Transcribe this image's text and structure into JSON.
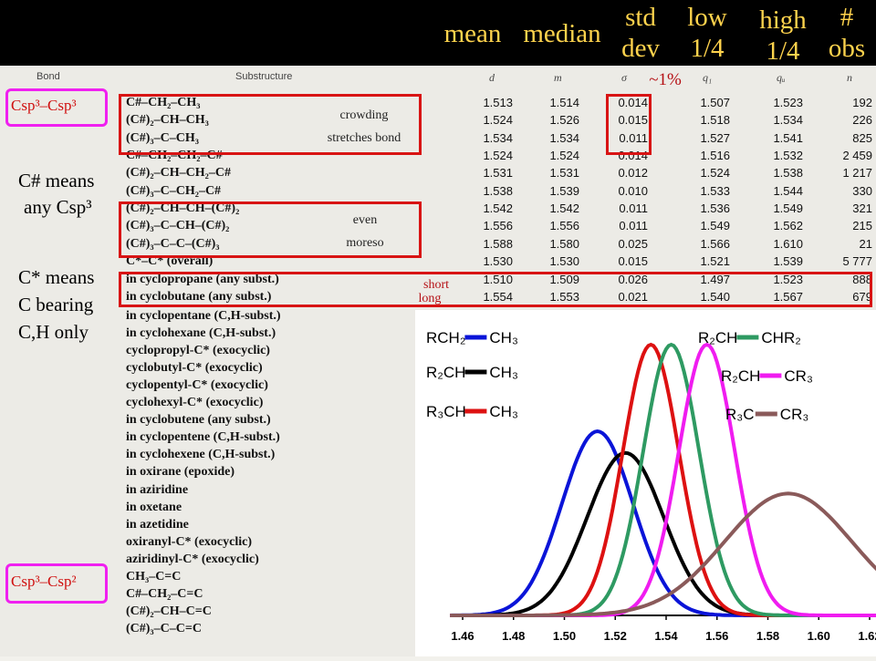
{
  "header": {
    "mean": "mean",
    "median": "median",
    "std_dev": [
      "std",
      "dev"
    ],
    "low": [
      "low",
      "1/4"
    ],
    "high": [
      "high",
      "1/4"
    ],
    "obs": [
      "#",
      "obs"
    ]
  },
  "columns": {
    "bond": "Bond",
    "substructure": "Substructure",
    "d": "d",
    "m": "m",
    "sigma": "σ",
    "q1": "q₁",
    "qu": "qᵤ",
    "n": "n"
  },
  "bond_types": {
    "first": "Csp³–Csp³",
    "second": "Csp³–Csp²"
  },
  "notes": {
    "approx": "~1%",
    "crowding": [
      "crowding",
      "stretches bond"
    ],
    "even": [
      "even",
      "moreso"
    ],
    "short": "short",
    "long": "long"
  },
  "side_notes": {
    "c_hash": [
      "C# means",
      "any Csp³"
    ],
    "c_star": [
      "C* means",
      "C bearing",
      "C,H only"
    ]
  },
  "rows": [
    {
      "sub": "C#–CH₂–CH₃",
      "d": "1.513",
      "m": "1.514",
      "s": "0.014",
      "q1": "1.507",
      "qu": "1.523",
      "n": "192"
    },
    {
      "sub": "(C#)₂–CH–CH₃",
      "d": "1.524",
      "m": "1.526",
      "s": "0.015",
      "q1": "1.518",
      "qu": "1.534",
      "n": "226"
    },
    {
      "sub": "(C#)₃–C–CH₃",
      "d": "1.534",
      "m": "1.534",
      "s": "0.011",
      "q1": "1.527",
      "qu": "1.541",
      "n": "825"
    },
    {
      "sub": "C#–CH₂–CH₂–C#",
      "d": "1.524",
      "m": "1.524",
      "s": "0.014",
      "q1": "1.516",
      "qu": "1.532",
      "n": "2 459"
    },
    {
      "sub": "(C#)₂–CH–CH₂–C#",
      "d": "1.531",
      "m": "1.531",
      "s": "0.012",
      "q1": "1.524",
      "qu": "1.538",
      "n": "1 217"
    },
    {
      "sub": "(C#)₃–C–CH₂–C#",
      "d": "1.538",
      "m": "1.539",
      "s": "0.010",
      "q1": "1.533",
      "qu": "1.544",
      "n": "330"
    },
    {
      "sub": "(C#)₂–CH–CH–(C#)₂",
      "d": "1.542",
      "m": "1.542",
      "s": "0.011",
      "q1": "1.536",
      "qu": "1.549",
      "n": "321"
    },
    {
      "sub": "(C#)₃–C–CH–(C#)₂",
      "d": "1.556",
      "m": "1.556",
      "s": "0.011",
      "q1": "1.549",
      "qu": "1.562",
      "n": "215"
    },
    {
      "sub": "(C#)₃–C–C–(C#)₃",
      "d": "1.588",
      "m": "1.580",
      "s": "0.025",
      "q1": "1.566",
      "qu": "1.610",
      "n": "21"
    },
    {
      "sub": "C*–C* (overall)",
      "d": "1.530",
      "m": "1.530",
      "s": "0.015",
      "q1": "1.521",
      "qu": "1.539",
      "n": "5 777"
    },
    {
      "sub": "in cyclopropane (any subst.)",
      "d": "1.510",
      "m": "1.509",
      "s": "0.026",
      "q1": "1.497",
      "qu": "1.523",
      "n": "888"
    },
    {
      "sub": "in cyclobutane (any subst.)",
      "d": "1.554",
      "m": "1.553",
      "s": "0.021",
      "q1": "1.540",
      "qu": "1.567",
      "n": "679"
    }
  ],
  "extra_rows": [
    "in cyclopentane (C,H-subst.)",
    "in cyclohexane (C,H-subst.)",
    "cyclopropyl-C* (exocyclic)",
    "cyclobutyl-C* (exocyclic)",
    "cyclopentyl-C* (exocyclic)",
    "cyclohexyl-C* (exocyclic)",
    "in cyclobutene (any subst.)",
    "in cyclopentene (C,H-subst.)",
    "in cyclohexene (C,H-subst.)",
    "in oxirane (epoxide)",
    "in aziridine",
    "in oxetane",
    "in azetidine",
    "oxiranyl-C* (exocyclic)",
    "aziridinyl-C* (exocyclic)",
    "CH₃–C=C",
    "C#–CH₂–C=C",
    "(C#)₂–CH–C=C",
    "(C#)₃–C–C=C"
  ],
  "chart_data": {
    "type": "line",
    "title": "",
    "xlabel": "",
    "ylabel": "",
    "xlim": [
      1.46,
      1.625
    ],
    "xticks": [
      "1.46",
      "1.48",
      "1.50",
      "1.52",
      "1.54",
      "1.56",
      "1.58",
      "1.60",
      "1.62"
    ],
    "grid": false,
    "series": [
      {
        "color": "#0a14d8",
        "mean": 1.513,
        "sd": 0.014,
        "legend": [
          "RCH₂",
          "CH₃"
        ]
      },
      {
        "color": "#000000",
        "mean": 1.524,
        "sd": 0.015,
        "legend": [
          "R₂CH",
          "CH₃"
        ]
      },
      {
        "color": "#dd1111",
        "mean": 1.534,
        "sd": 0.011,
        "legend": [
          "R₃CH",
          "CH₃"
        ]
      },
      {
        "color": "#2e9a62",
        "mean": 1.542,
        "sd": 0.011,
        "legend": [
          "R₂CH",
          "CHR₂"
        ]
      },
      {
        "color": "#f01cf0",
        "mean": 1.556,
        "sd": 0.011,
        "legend": [
          "R₂CH",
          "CR₃"
        ]
      },
      {
        "color": "#8a5a5a",
        "mean": 1.588,
        "sd": 0.025,
        "legend": [
          "R₃C",
          "CR₃"
        ]
      }
    ]
  }
}
